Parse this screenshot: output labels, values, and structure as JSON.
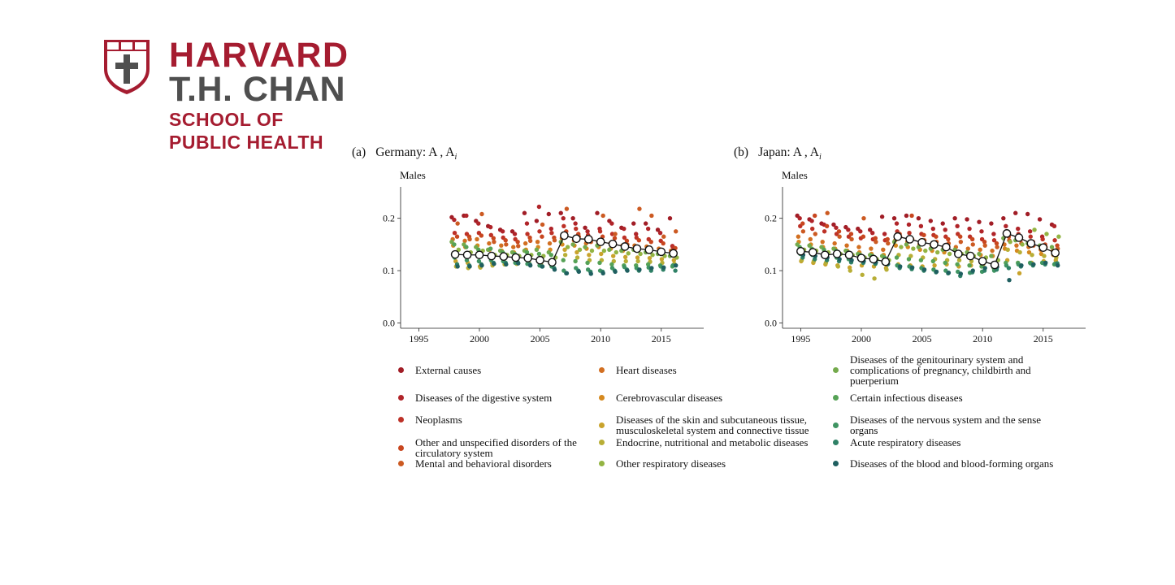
{
  "logo": {
    "line1": "HARVARD",
    "line2": "T.H. CHAN",
    "line3": "SCHOOL OF",
    "line4": "PUBLIC HEALTH",
    "colors": {
      "crimson": "#a51c30",
      "gray": "#4f4f4f"
    },
    "icon": "shield-veritas-icon"
  },
  "panels": [
    {
      "label": "(a)",
      "title": "Germany: A , A",
      "subscript": "i",
      "subtitle": "Males"
    },
    {
      "label": "(b)",
      "title": "Japan: A , A",
      "subscript": "i",
      "subtitle": "Males"
    }
  ],
  "legend": [
    {
      "label": "External causes",
      "color": "#a11d26"
    },
    {
      "label": "Diseases of the digestive system",
      "color": "#b02429"
    },
    {
      "label": "Neoplasms",
      "color": "#bd3127"
    },
    {
      "label": "Other and unspecified disorders of the circulatory system",
      "color": "#c8461f"
    },
    {
      "label": "Mental and behavioral disorders",
      "color": "#cc5a22"
    },
    {
      "label": "Heart diseases",
      "color": "#d26f21"
    },
    {
      "label": "Cerebrovascular diseases",
      "color": "#d5891f"
    },
    {
      "label": "Diseases of the skin and subcutaneous tissue, musculoskeletal system and connective tissue",
      "color": "#c9a32c"
    },
    {
      "label": "Endocrine, nutritional and metabolic diseases",
      "color": "#b8ae36"
    },
    {
      "label": "Other respiratory diseases",
      "color": "#93b443"
    },
    {
      "label": "Diseases of the genitourinary system and complications of pregnancy, childbirth and puerperium",
      "color": "#74aa4c"
    },
    {
      "label": "Certain infectious diseases",
      "color": "#56a256"
    },
    {
      "label": "Diseases of the nervous system and the sense organs",
      "color": "#3f9462"
    },
    {
      "label": "Acute respiratory diseases",
      "color": "#2f8166"
    },
    {
      "label": "Diseases of the blood and blood-forming organs",
      "color": "#1f5f60"
    }
  ],
  "chart_data": [
    {
      "type": "scatter",
      "title": "(a) Germany: A , A_i",
      "ylabel": "Males",
      "xlim": [
        1993.5,
        2018.5
      ],
      "ylim": [
        -0.01,
        0.26
      ],
      "xticks": [
        1995,
        2000,
        2005,
        2010,
        2015
      ],
      "yticks": [
        0.0,
        0.1,
        0.2
      ],
      "ytick_labels": [
        "0.0",
        "0.1",
        "0.2"
      ],
      "line_series": {
        "name": "A",
        "x": [
          1998,
          1999,
          2000,
          2001,
          2002,
          2003,
          2004,
          2005,
          2006,
          2007,
          2008,
          2009,
          2010,
          2011,
          2012,
          2013,
          2014,
          2015,
          2016
        ],
        "y": [
          0.131,
          0.13,
          0.13,
          0.128,
          0.127,
          0.125,
          0.124,
          0.12,
          0.116,
          0.167,
          0.161,
          0.16,
          0.155,
          0.151,
          0.146,
          0.142,
          0.14,
          0.136,
          0.133
        ]
      },
      "cause_x": [
        1998,
        1999,
        2000,
        2001,
        2002,
        2003,
        2004,
        2005,
        2006,
        2007,
        2008,
        2009,
        2010,
        2011,
        2012,
        2013,
        2014,
        2015,
        2016
      ],
      "cause_y": [
        [
          0.202,
          0.205,
          0.195,
          0.185,
          0.178,
          0.175,
          0.21,
          0.195,
          0.208,
          0.21,
          0.2,
          0.182,
          0.21,
          0.195,
          0.182,
          0.19,
          0.19,
          0.178,
          0.2
        ],
        [
          0.197,
          0.205,
          0.19,
          0.183,
          0.175,
          0.17,
          0.19,
          0.222,
          0.18,
          0.2,
          0.19,
          0.175,
          0.18,
          0.19,
          0.18,
          0.17,
          0.18,
          0.172,
          0.147
        ],
        [
          0.172,
          0.17,
          0.172,
          0.168,
          0.163,
          0.16,
          0.17,
          0.175,
          0.172,
          0.185,
          0.18,
          0.168,
          0.175,
          0.17,
          0.163,
          0.163,
          0.16,
          0.157,
          0.145
        ],
        [
          0.165,
          0.165,
          0.167,
          0.162,
          0.158,
          0.155,
          0.163,
          0.165,
          0.163,
          0.175,
          0.17,
          0.162,
          0.165,
          0.162,
          0.157,
          0.158,
          0.155,
          0.152,
          0.143
        ],
        [
          0.19,
          0.16,
          0.208,
          0.155,
          0.15,
          0.147,
          0.157,
          0.188,
          0.158,
          0.218,
          0.165,
          0.155,
          0.205,
          0.17,
          0.15,
          0.218,
          0.205,
          0.165,
          0.175
        ],
        [
          0.16,
          0.157,
          0.16,
          0.152,
          0.148,
          0.145,
          0.152,
          0.155,
          0.152,
          0.162,
          0.158,
          0.152,
          0.155,
          0.152,
          0.148,
          0.148,
          0.146,
          0.142,
          0.138
        ],
        [
          0.148,
          0.145,
          0.148,
          0.14,
          0.138,
          0.135,
          0.14,
          0.145,
          0.14,
          0.15,
          0.148,
          0.142,
          0.145,
          0.142,
          0.138,
          0.14,
          0.138,
          0.135,
          0.132
        ],
        [
          0.118,
          0.115,
          0.108,
          0.115,
          0.117,
          0.118,
          0.12,
          0.118,
          0.12,
          0.14,
          0.135,
          0.13,
          0.132,
          0.128,
          0.126,
          0.125,
          0.124,
          0.122,
          0.12
        ],
        [
          0.108,
          0.105,
          0.106,
          0.11,
          0.112,
          0.113,
          0.115,
          0.112,
          0.115,
          0.13,
          0.125,
          0.12,
          0.12,
          0.118,
          0.118,
          0.118,
          0.117,
          0.115,
          0.113
        ],
        [
          0.14,
          0.135,
          0.138,
          0.13,
          0.13,
          0.128,
          0.13,
          0.128,
          0.125,
          0.145,
          0.14,
          0.138,
          0.138,
          0.135,
          0.133,
          0.132,
          0.13,
          0.128,
          0.125
        ],
        [
          0.155,
          0.15,
          0.145,
          0.14,
          0.138,
          0.135,
          0.138,
          0.14,
          0.135,
          0.155,
          0.15,
          0.145,
          0.148,
          0.14,
          0.138,
          0.14,
          0.135,
          0.132,
          0.128
        ],
        [
          0.15,
          0.145,
          0.14,
          0.142,
          0.135,
          0.132,
          0.135,
          0.132,
          0.13,
          0.12,
          0.118,
          0.115,
          0.115,
          0.112,
          0.11,
          0.11,
          0.112,
          0.11,
          0.108
        ],
        [
          0.125,
          0.12,
          0.118,
          0.12,
          0.118,
          0.115,
          0.113,
          0.11,
          0.108,
          0.1,
          0.105,
          0.102,
          0.1,
          0.105,
          0.107,
          0.105,
          0.106,
          0.108,
          0.11
        ],
        [
          0.112,
          0.11,
          0.112,
          0.115,
          0.115,
          0.116,
          0.112,
          0.108,
          0.105,
          0.095,
          0.1,
          0.098,
          0.098,
          0.1,
          0.102,
          0.1,
          0.1,
          0.102,
          0.1
        ],
        [
          0.108,
          0.108,
          0.11,
          0.113,
          0.112,
          0.114,
          0.11,
          0.108,
          0.102,
          0.095,
          0.098,
          0.094,
          0.095,
          0.098,
          0.1,
          0.102,
          0.105,
          0.106,
          0.11
        ]
      ]
    },
    {
      "type": "scatter",
      "title": "(b) Japan: A , A_i",
      "ylabel": "Males",
      "xlim": [
        1993.5,
        2018.5
      ],
      "ylim": [
        -0.01,
        0.26
      ],
      "xticks": [
        1995,
        2000,
        2005,
        2010,
        2015
      ],
      "yticks": [
        0.0,
        0.1,
        0.2
      ],
      "ytick_labels": [
        "0.0",
        "0.1",
        "0.2"
      ],
      "line_series": {
        "name": "A",
        "x": [
          1995,
          1996,
          1997,
          1998,
          1999,
          2000,
          2001,
          2002,
          2003,
          2004,
          2005,
          2006,
          2007,
          2008,
          2009,
          2010,
          2011,
          2012,
          2013,
          2014,
          2015,
          2016
        ],
        "y": [
          0.137,
          0.135,
          0.13,
          0.132,
          0.13,
          0.124,
          0.122,
          0.117,
          0.165,
          0.16,
          0.154,
          0.15,
          0.145,
          0.132,
          0.128,
          0.118,
          0.111,
          0.171,
          0.163,
          0.152,
          0.144,
          0.134
        ]
      },
      "cause_x": [
        1995,
        1996,
        1997,
        1998,
        1999,
        2000,
        2001,
        2002,
        2003,
        2004,
        2005,
        2006,
        2007,
        2008,
        2009,
        2010,
        2011,
        2012,
        2013,
        2014,
        2015,
        2016
      ],
      "cause_y": [
        [
          0.205,
          0.198,
          0.19,
          0.188,
          0.183,
          0.18,
          0.178,
          0.203,
          0.2,
          0.205,
          0.2,
          0.195,
          0.19,
          0.2,
          0.198,
          0.193,
          0.19,
          0.2,
          0.21,
          0.208,
          0.198,
          0.188
        ],
        [
          0.2,
          0.195,
          0.188,
          0.182,
          0.178,
          0.175,
          0.172,
          0.17,
          0.19,
          0.188,
          0.185,
          0.18,
          0.178,
          0.185,
          0.18,
          0.175,
          0.17,
          0.185,
          0.18,
          0.175,
          0.165,
          0.185
        ],
        [
          0.185,
          0.18,
          0.175,
          0.17,
          0.165,
          0.162,
          0.16,
          0.158,
          0.175,
          0.172,
          0.17,
          0.168,
          0.165,
          0.17,
          0.165,
          0.16,
          0.158,
          0.175,
          0.17,
          0.165,
          0.16,
          0.158
        ],
        [
          0.19,
          0.205,
          0.185,
          0.175,
          0.17,
          0.165,
          0.162,
          0.16,
          0.17,
          0.205,
          0.168,
          0.165,
          0.16,
          0.165,
          0.16,
          0.155,
          0.152,
          0.165,
          0.16,
          0.155,
          0.15,
          0.148
        ],
        [
          0.175,
          0.17,
          0.21,
          0.165,
          0.16,
          0.2,
          0.155,
          0.152,
          0.165,
          0.16,
          0.158,
          0.155,
          0.152,
          0.155,
          0.15,
          0.148,
          0.145,
          0.158,
          0.152,
          0.148,
          0.145,
          0.142
        ],
        [
          0.165,
          0.16,
          0.155,
          0.152,
          0.148,
          0.145,
          0.142,
          0.14,
          0.158,
          0.155,
          0.15,
          0.148,
          0.145,
          0.145,
          0.142,
          0.14,
          0.138,
          0.15,
          0.148,
          0.145,
          0.14,
          0.138
        ],
        [
          0.155,
          0.15,
          0.145,
          0.142,
          0.138,
          0.135,
          0.132,
          0.13,
          0.148,
          0.145,
          0.14,
          0.138,
          0.135,
          0.135,
          0.132,
          0.13,
          0.128,
          0.142,
          0.138,
          0.135,
          0.132,
          0.13
        ],
        [
          0.118,
          0.115,
          0.112,
          0.11,
          0.106,
          0.11,
          0.108,
          0.105,
          0.112,
          0.11,
          0.108,
          0.11,
          0.112,
          0.108,
          0.11,
          0.112,
          0.108,
          0.12,
          0.095,
          0.115,
          0.118,
          0.12
        ],
        [
          0.12,
          0.118,
          0.115,
          0.108,
          0.1,
          0.092,
          0.085,
          0.102,
          0.13,
          0.128,
          0.125,
          0.122,
          0.12,
          0.12,
          0.118,
          0.115,
          0.112,
          0.14,
          0.135,
          0.13,
          0.128,
          0.125
        ],
        [
          0.14,
          0.138,
          0.135,
          0.132,
          0.13,
          0.125,
          0.122,
          0.12,
          0.145,
          0.142,
          0.138,
          0.135,
          0.132,
          0.132,
          0.128,
          0.125,
          0.12,
          0.155,
          0.15,
          0.178,
          0.17,
          0.165
        ],
        [
          0.15,
          0.148,
          0.145,
          0.142,
          0.138,
          0.132,
          0.13,
          0.128,
          0.155,
          0.15,
          0.145,
          0.142,
          0.14,
          0.14,
          0.135,
          0.132,
          0.128,
          0.162,
          0.158,
          0.152,
          0.148,
          0.145
        ],
        [
          0.145,
          0.142,
          0.14,
          0.138,
          0.135,
          0.13,
          0.128,
          0.125,
          0.125,
          0.122,
          0.12,
          0.118,
          0.115,
          0.112,
          0.11,
          0.108,
          0.105,
          0.115,
          0.115,
          0.115,
          0.115,
          0.112
        ],
        [
          0.132,
          0.13,
          0.128,
          0.125,
          0.122,
          0.12,
          0.118,
          0.115,
          0.11,
          0.108,
          0.105,
          0.102,
          0.1,
          0.098,
          0.096,
          0.098,
          0.1,
          0.11,
          0.112,
          0.114,
          0.115,
          0.113
        ],
        [
          0.125,
          0.122,
          0.12,
          0.118,
          0.116,
          0.115,
          0.113,
          0.112,
          0.105,
          0.103,
          0.1,
          0.097,
          0.095,
          0.09,
          0.097,
          0.1,
          0.102,
          0.105,
          0.108,
          0.11,
          0.112,
          0.114
        ],
        [
          0.13,
          0.128,
          0.125,
          0.122,
          0.12,
          0.118,
          0.116,
          0.113,
          0.108,
          0.106,
          0.102,
          0.098,
          0.096,
          0.094,
          0.1,
          0.105,
          0.107,
          0.082,
          0.11,
          0.112,
          0.115,
          0.11
        ]
      ]
    }
  ]
}
